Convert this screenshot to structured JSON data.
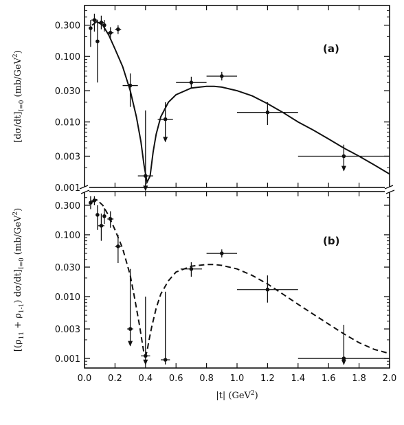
{
  "chart_data": [
    {
      "type": "scatter",
      "panel_label": "(a)",
      "ylabel": "[dσ/dt]I=0 (mb/GeV²)",
      "ylabel_parts": {
        "num": "dσ",
        "den": "dt",
        "sub": "I=0",
        "unit": "(mb/GeV",
        "unit_sup": "2",
        "unit_close": ")"
      },
      "y_scale": "log",
      "ylim": [
        0.001,
        0.6
      ],
      "yticks": [
        0.001,
        0.003,
        0.01,
        0.03,
        0.1,
        0.3
      ],
      "yticklabels": [
        "0.001",
        "0.003",
        "0.010",
        "0.030",
        "0.100",
        "0.300"
      ],
      "series": [
        {
          "kind": "points",
          "x": [
            0.04,
            0.065,
            0.085,
            0.11,
            0.13,
            0.17,
            0.22,
            0.3,
            0.4,
            0.53,
            0.7,
            0.9,
            1.2,
            1.7
          ],
          "y": [
            0.27,
            0.36,
            0.17,
            0.33,
            0.3,
            0.23,
            0.26,
            0.036,
            0.0015,
            0.011,
            0.04,
            0.05,
            0.014,
            0.003
          ],
          "y_low": [
            0.14,
            0.24,
            0.04,
            0.26,
            0.24,
            0.19,
            0.22,
            0.017,
            0.0009,
            0.005,
            0.033,
            0.043,
            0.009,
            0.0018
          ],
          "y_high": [
            0.36,
            0.45,
            0.36,
            0.42,
            0.36,
            0.28,
            0.3,
            0.055,
            0.015,
            0.02,
            0.049,
            0.058,
            0.02,
            0.0045
          ],
          "x_err": [
            0,
            0.02,
            0,
            0.02,
            0,
            0.02,
            0.02,
            0.05,
            0.05,
            0.05,
            0.1,
            0.1,
            0.2,
            0.3
          ],
          "arrow_down": [
            false,
            false,
            false,
            false,
            false,
            false,
            false,
            false,
            true,
            true,
            false,
            false,
            false,
            true
          ]
        },
        {
          "kind": "curve",
          "style": "solid",
          "x": [
            0.05,
            0.08,
            0.12,
            0.16,
            0.2,
            0.25,
            0.3,
            0.34,
            0.37,
            0.39,
            0.41,
            0.43,
            0.45,
            0.47,
            0.5,
            0.55,
            0.6,
            0.7,
            0.8,
            0.85,
            0.9,
            1.0,
            1.1,
            1.2,
            1.3,
            1.4,
            1.5,
            1.6,
            1.7,
            1.8,
            1.9,
            2.0
          ],
          "y": [
            0.3,
            0.34,
            0.3,
            0.21,
            0.13,
            0.07,
            0.03,
            0.012,
            0.005,
            0.0022,
            0.0012,
            0.0015,
            0.0035,
            0.0065,
            0.012,
            0.02,
            0.026,
            0.033,
            0.035,
            0.035,
            0.034,
            0.03,
            0.025,
            0.019,
            0.014,
            0.01,
            0.0075,
            0.0055,
            0.004,
            0.003,
            0.0022,
            0.0016
          ]
        }
      ]
    },
    {
      "type": "scatter",
      "panel_label": "(b)",
      "ylabel": "[(ρ11 + ρ1-1) dσ/dt]I=0 (mb/GeV²)",
      "ylabel_parts": {
        "rho_a": "ρ",
        "rho_a_sub": "11",
        "plus": " + ",
        "rho_b": "ρ",
        "rho_b_sub": "1-1",
        "num": "dσ",
        "den": "dt",
        "sub": "I=0",
        "unit": "(mb/GeV",
        "unit_sup": "2",
        "unit_close": ")"
      },
      "y_scale": "log",
      "ylim": [
        0.0007,
        0.5
      ],
      "yticks": [
        0.001,
        0.003,
        0.01,
        0.03,
        0.1,
        0.3
      ],
      "yticklabels": [
        "0.001",
        "0.003",
        "0.010",
        "0.030",
        "0.100",
        "0.300"
      ],
      "xlabel": "|t|  (GeV²)",
      "xlabel_parts": {
        "main": "|t|  (GeV",
        "sup": "2",
        "close": ")"
      },
      "xlim": [
        0.0,
        2.0
      ],
      "xticks": [
        0.0,
        0.2,
        0.4,
        0.6,
        0.8,
        1.0,
        1.2,
        1.4,
        1.6,
        1.8,
        2.0
      ],
      "xticklabels": [
        "0.0",
        "0.2",
        "0.4",
        "0.6",
        "0.8",
        "1.0",
        "1.2",
        "1.4",
        "1.6",
        "1.8",
        "2.0"
      ],
      "series": [
        {
          "kind": "points",
          "x": [
            0.04,
            0.065,
            0.085,
            0.11,
            0.13,
            0.17,
            0.22,
            0.3,
            0.4,
            0.53,
            0.7,
            0.9,
            1.2,
            1.7
          ],
          "y": [
            0.33,
            0.36,
            0.21,
            0.14,
            0.2,
            0.18,
            0.065,
            0.003,
            0.0011,
            0.00095,
            0.028,
            0.05,
            0.013,
            0.001
          ],
          "y_low": [
            0.26,
            0.3,
            0.12,
            0.08,
            0.15,
            0.13,
            0.035,
            0.0016,
            0.0008,
            0.0008,
            0.021,
            0.043,
            0.008,
            0.0008
          ],
          "y_high": [
            0.42,
            0.42,
            0.3,
            0.22,
            0.27,
            0.24,
            0.1,
            0.028,
            0.01,
            0.012,
            0.036,
            0.058,
            0.022,
            0.0035
          ],
          "x_err": [
            0,
            0.02,
            0,
            0.02,
            0,
            0.02,
            0.02,
            0.02,
            0.03,
            0.03,
            0.07,
            0.1,
            0.2,
            0.3
          ],
          "arrow_down": [
            false,
            false,
            false,
            false,
            false,
            false,
            false,
            true,
            true,
            false,
            false,
            false,
            false,
            true
          ]
        },
        {
          "kind": "curve",
          "style": "dashed",
          "x": [
            0.05,
            0.08,
            0.12,
            0.16,
            0.2,
            0.25,
            0.3,
            0.33,
            0.36,
            0.38,
            0.39,
            0.4,
            0.41,
            0.42,
            0.44,
            0.47,
            0.5,
            0.55,
            0.6,
            0.7,
            0.8,
            0.85,
            0.9,
            1.0,
            1.1,
            1.2,
            1.3,
            1.4,
            1.5,
            1.6,
            1.7,
            1.8,
            1.9,
            2.0
          ],
          "y": [
            0.34,
            0.37,
            0.3,
            0.2,
            0.12,
            0.06,
            0.022,
            0.009,
            0.0035,
            0.0017,
            0.0012,
            0.0011,
            0.0013,
            0.0018,
            0.0032,
            0.0065,
            0.011,
            0.018,
            0.025,
            0.031,
            0.033,
            0.033,
            0.032,
            0.028,
            0.022,
            0.016,
            0.011,
            0.0075,
            0.0052,
            0.0036,
            0.0025,
            0.0018,
            0.0014,
            0.0012
          ]
        }
      ]
    }
  ]
}
